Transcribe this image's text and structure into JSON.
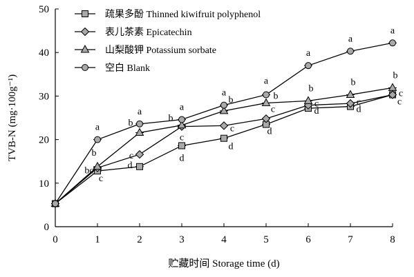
{
  "chart_data": {
    "type": "line",
    "xlabel": "贮藏时间 Storage time (d)",
    "ylabel": "TVB-N (mg·100g⁻¹)",
    "xlim": [
      0,
      8
    ],
    "ylim": [
      0,
      50
    ],
    "xticks": [
      0,
      1,
      2,
      3,
      4,
      5,
      6,
      7,
      8
    ],
    "yticks": [
      0,
      10,
      20,
      30,
      40,
      50
    ],
    "grid": false,
    "legend_position": "top-left",
    "x": [
      0,
      1,
      2,
      3,
      4,
      5,
      6,
      7,
      8
    ],
    "series": [
      {
        "name": "疏果多酚 Thinned kiwifruit polyphenol",
        "marker": "square",
        "values": [
          5.3,
          12.8,
          13.8,
          18.6,
          20.3,
          23.5,
          27.2,
          27.6,
          30.3
        ],
        "labels": [
          "",
          "c",
          "d",
          "d",
          "d",
          "d",
          "d",
          "d",
          "c"
        ]
      },
      {
        "name": "表儿茶素 Epicatechin",
        "marker": "diamond",
        "values": [
          5.3,
          13.5,
          16.6,
          23.0,
          23.2,
          24.8,
          27.9,
          28.3,
          30.3
        ],
        "labels": [
          "",
          "bc",
          "c",
          "c",
          "c",
          "c",
          "c",
          "c",
          "c"
        ]
      },
      {
        "name": "山梨酸钾 Potassium sorbate",
        "marker": "triangle",
        "values": [
          5.3,
          13.8,
          21.6,
          23.3,
          26.6,
          28.4,
          28.9,
          30.3,
          31.9
        ],
        "labels": [
          "",
          "b",
          "b",
          "b",
          "b",
          "b",
          "b",
          "b",
          "b"
        ]
      },
      {
        "name": "空白 Blank",
        "marker": "circle",
        "values": [
          5.3,
          20.0,
          23.6,
          24.6,
          27.9,
          30.3,
          37.0,
          40.3,
          42.2
        ],
        "labels": [
          "",
          "a",
          "a",
          "a",
          "a",
          "a",
          "a",
          "a",
          "a"
        ]
      }
    ]
  }
}
